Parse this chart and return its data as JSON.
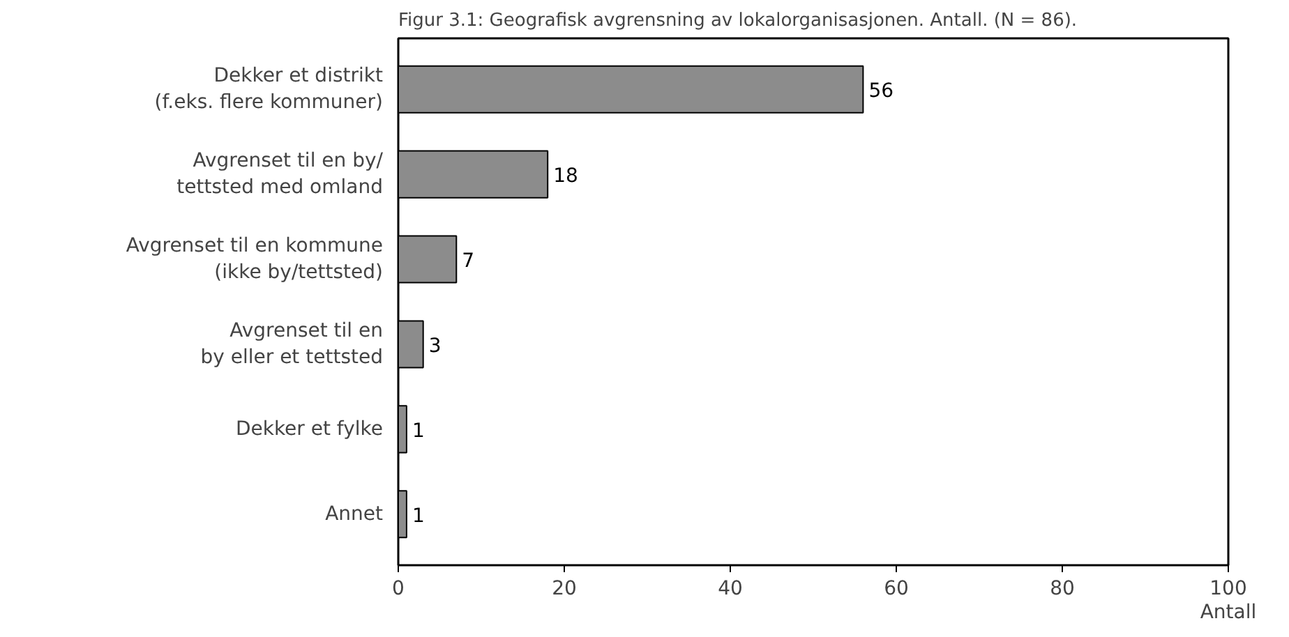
{
  "chart_data": {
    "type": "bar",
    "orientation": "horizontal",
    "title": "Figur 3.1: Geografisk avgrensning av lokalorganisasjonen. Antall. (N = 86).",
    "xlabel": "Antall",
    "categories": [
      "Dekker et distrikt\n(f.eks. flere kommuner)",
      "Avgrenset til en by/\ntettsted med omland",
      "Avgrenset til en kommune\n(ikke by/tettsted)",
      "Avgrenset til en\nby eller et tettsted",
      "Dekker et fylke",
      "Annet"
    ],
    "values": [
      56,
      18,
      7,
      3,
      1,
      1
    ],
    "color": "#8c8c8c",
    "data_labels": true,
    "xlim": [
      0,
      100
    ],
    "xticks": [
      0,
      20,
      40,
      60,
      80,
      100
    ],
    "grid": false
  }
}
